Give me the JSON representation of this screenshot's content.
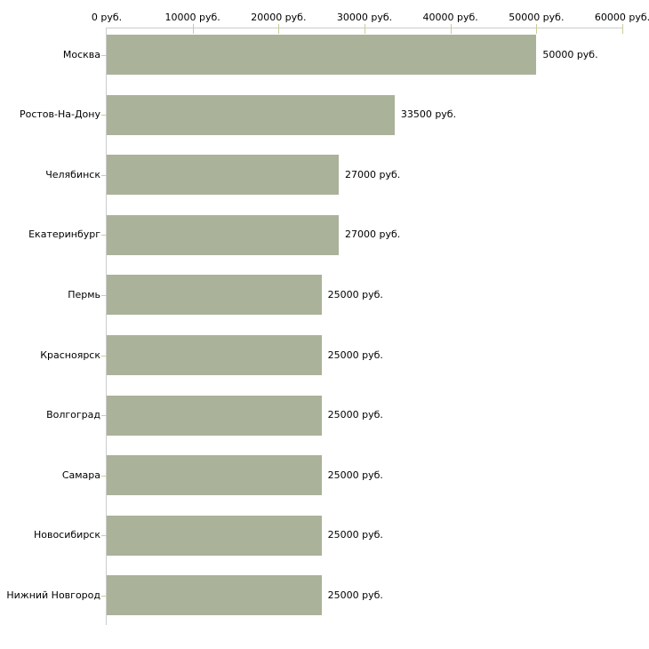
{
  "chart_data": {
    "type": "bar",
    "orientation": "horizontal",
    "title": "",
    "xlabel": "",
    "ylabel": "",
    "unit": "руб.",
    "categories": [
      "Москва",
      "Ростов-На-Дону",
      "Челябинск",
      "Екатеринбург",
      "Пермь",
      "Красноярск",
      "Волгоград",
      "Самара",
      "Новосибирск",
      "Нижний Новгород"
    ],
    "values": [
      50000,
      33500,
      27000,
      27000,
      25000,
      25000,
      25000,
      25000,
      25000,
      25000
    ],
    "value_labels": [
      "50000 руб.",
      "33500 руб.",
      "27000 руб.",
      "27000 руб.",
      "25000 руб.",
      "25000 руб.",
      "25000 руб.",
      "25000 руб.",
      "25000 руб.",
      "25000 руб."
    ],
    "x_ticks": [
      {
        "value": 0,
        "label": "0 руб."
      },
      {
        "value": 10000,
        "label": "10000 руб."
      },
      {
        "value": 20000,
        "label": "20000 руб."
      },
      {
        "value": 30000,
        "label": "30000 руб."
      },
      {
        "value": 40000,
        "label": "40000 руб."
      },
      {
        "value": 50000,
        "label": "50000 руб."
      },
      {
        "value": 60000,
        "label": "60000 руб."
      }
    ],
    "xlim": [
      0,
      60000
    ],
    "grid": false,
    "legend": false,
    "colors": {
      "bar": "#aab299",
      "axis_line": "#cccccc",
      "tick": "#cccc99",
      "text": "#000000",
      "background": "#ffffff"
    }
  }
}
